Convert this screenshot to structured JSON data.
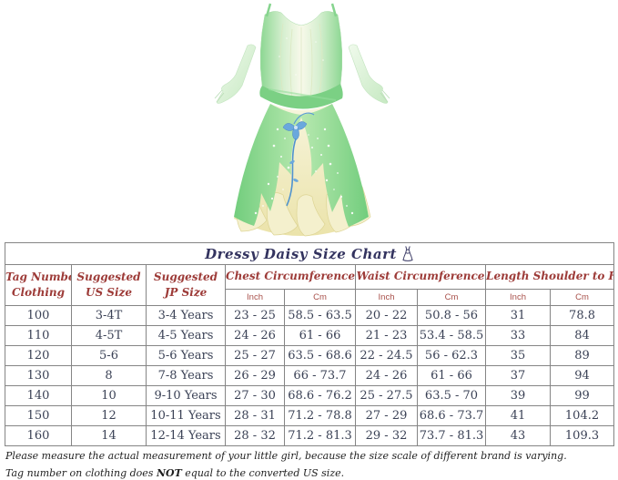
{
  "size_chart": {
    "title": "Dressy Daisy Size Chart",
    "columns": [
      {
        "line1": "Tag Number on",
        "line2": "Clothing"
      },
      {
        "line1": "Suggested",
        "line2": "US Size"
      },
      {
        "line1": "Suggested",
        "line2": "JP Size"
      },
      {
        "label": "Chest Circumference",
        "sub": [
          "Inch",
          "Cm"
        ]
      },
      {
        "label": "Waist Circumference",
        "sub": [
          "Inch",
          "Cm"
        ]
      },
      {
        "label": "Length Shoulder to Hem",
        "sub": [
          "Inch",
          "Cm"
        ]
      }
    ],
    "rows": [
      [
        "100",
        "3-4T",
        "3-4 Years",
        "23 - 25",
        "58.5 - 63.5",
        "20 - 22",
        "50.8 - 56",
        "31",
        "78.8"
      ],
      [
        "110",
        "4-5T",
        "4-5 Years",
        "24 - 26",
        "61 - 66",
        "21 - 23",
        "53.4 - 58.5",
        "33",
        "84"
      ],
      [
        "120",
        "5-6",
        "5-6 Years",
        "25 - 27",
        "63.5 - 68.6",
        "22 - 24.5",
        "56 - 62.3",
        "35",
        "89"
      ],
      [
        "130",
        "8",
        "7-8 Years",
        "26 - 29",
        "66 - 73.7",
        "24 - 26",
        "61 - 66",
        "37",
        "94"
      ],
      [
        "140",
        "10",
        "9-10 Years",
        "27 - 30",
        "68.6 - 76.2",
        "25 - 27.5",
        "63.5 - 70",
        "39",
        "99"
      ],
      [
        "150",
        "12",
        "10-11 Years",
        "28 - 31",
        "71.2 - 78.8",
        "27 - 29",
        "68.6 - 73.7",
        "41",
        "104.2"
      ],
      [
        "160",
        "14",
        "12-14 Years",
        "28 - 32",
        "71.2 - 81.3",
        "29 - 32",
        "73.7 - 81.3",
        "43",
        "109.3"
      ]
    ]
  },
  "notes": {
    "line1": "Please measure the actual measurement of your little girl, because the size scale of different brand is varying.",
    "line2_before": "Tag number on clothing does ",
    "line2_bold": "NOT",
    "line2_after": " equal to the converted US size."
  },
  "colors": {
    "table_border": "#858585",
    "title_text": "#33335f",
    "header_text": "#9d3b38",
    "cell_text": "#3a4155",
    "dress_green": "#7dd385",
    "dress_light_green": "#d6efd0",
    "dress_cream": "#f2eec8",
    "flower_blue": "#5a9bd4"
  }
}
